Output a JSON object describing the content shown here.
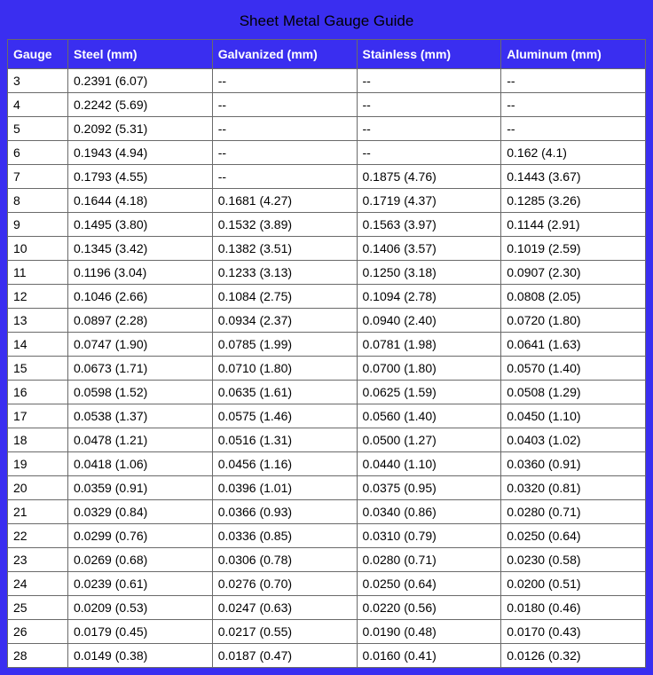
{
  "title": "Sheet Metal Gauge Guide",
  "table": {
    "columns": [
      "Gauge",
      "Steel (mm)",
      "Galvanized (mm)",
      "Stainless (mm)",
      "Aluminum (mm)"
    ],
    "colors": {
      "frame_bg": "#3a2ef0",
      "header_bg": "#3a2ef0",
      "header_text": "#ffffff",
      "cell_bg": "#ffffff",
      "cell_text": "#000000",
      "border": "#6a6a6a",
      "title_text": "#000000"
    },
    "fontsize": {
      "title": 17,
      "header": 14,
      "cell": 14
    },
    "column_widths": [
      "68px",
      "auto",
      "auto",
      "auto",
      "auto"
    ],
    "rows": [
      [
        "3",
        "0.2391 (6.07)",
        "--",
        "--",
        "--"
      ],
      [
        "4",
        "0.2242 (5.69)",
        "--",
        "--",
        "--"
      ],
      [
        "5",
        "0.2092 (5.31)",
        "--",
        "--",
        "--"
      ],
      [
        "6",
        "0.1943 (4.94)",
        "--",
        "--",
        "0.162 (4.1)"
      ],
      [
        "7",
        "0.1793 (4.55)",
        "--",
        "0.1875 (4.76)",
        "0.1443 (3.67)"
      ],
      [
        "8",
        "0.1644 (4.18)",
        "0.1681 (4.27)",
        "0.1719 (4.37)",
        "0.1285 (3.26)"
      ],
      [
        "9",
        "0.1495 (3.80)",
        "0.1532 (3.89)",
        "0.1563 (3.97)",
        "0.1144 (2.91)"
      ],
      [
        "10",
        "0.1345 (3.42)",
        "0.1382 (3.51)",
        "0.1406 (3.57)",
        "0.1019 (2.59)"
      ],
      [
        "11",
        "0.1196 (3.04)",
        "0.1233 (3.13)",
        "0.1250 (3.18)",
        "0.0907 (2.30)"
      ],
      [
        "12",
        "0.1046 (2.66)",
        "0.1084 (2.75)",
        "0.1094 (2.78)",
        "0.0808 (2.05)"
      ],
      [
        "13",
        "0.0897 (2.28)",
        "0.0934 (2.37)",
        "0.0940 (2.40)",
        "0.0720 (1.80)"
      ],
      [
        "14",
        "0.0747 (1.90)",
        "0.0785 (1.99)",
        "0.0781 (1.98)",
        "0.0641 (1.63)"
      ],
      [
        "15",
        "0.0673 (1.71)",
        "0.0710 (1.80)",
        "0.0700 (1.80)",
        "0.0570 (1.40)"
      ],
      [
        "16",
        "0.0598 (1.52)",
        "0.0635 (1.61)",
        "0.0625 (1.59)",
        "0.0508 (1.29)"
      ],
      [
        "17",
        "0.0538 (1.37)",
        "0.0575 (1.46)",
        "0.0560 (1.40)",
        "0.0450 (1.10)"
      ],
      [
        "18",
        "0.0478 (1.21)",
        "0.0516 (1.31)",
        "0.0500 (1.27)",
        "0.0403 (1.02)"
      ],
      [
        "19",
        "0.0418 (1.06)",
        "0.0456 (1.16)",
        "0.0440 (1.10)",
        "0.0360 (0.91)"
      ],
      [
        "20",
        "0.0359 (0.91)",
        "0.0396 (1.01)",
        "0.0375 (0.95)",
        "0.0320 (0.81)"
      ],
      [
        "21",
        "0.0329 (0.84)",
        "0.0366 (0.93)",
        "0.0340 (0.86)",
        "0.0280 (0.71)"
      ],
      [
        "22",
        "0.0299 (0.76)",
        "0.0336 (0.85)",
        "0.0310 (0.79)",
        "0.0250 (0.64)"
      ],
      [
        "23",
        "0.0269 (0.68)",
        "0.0306 (0.78)",
        "0.0280 (0.71)",
        "0.0230 (0.58)"
      ],
      [
        "24",
        "0.0239 (0.61)",
        "0.0276 (0.70)",
        "0.0250 (0.64)",
        "0.0200 (0.51)"
      ],
      [
        "25",
        "0.0209 (0.53)",
        "0.0247 (0.63)",
        "0.0220 (0.56)",
        "0.0180 (0.46)"
      ],
      [
        "26",
        "0.0179 (0.45)",
        "0.0217 (0.55)",
        "0.0190 (0.48)",
        "0.0170 (0.43)"
      ],
      [
        "28",
        "0.0149 (0.38)",
        "0.0187 (0.47)",
        "0.0160 (0.41)",
        "0.0126 (0.32)"
      ]
    ]
  }
}
